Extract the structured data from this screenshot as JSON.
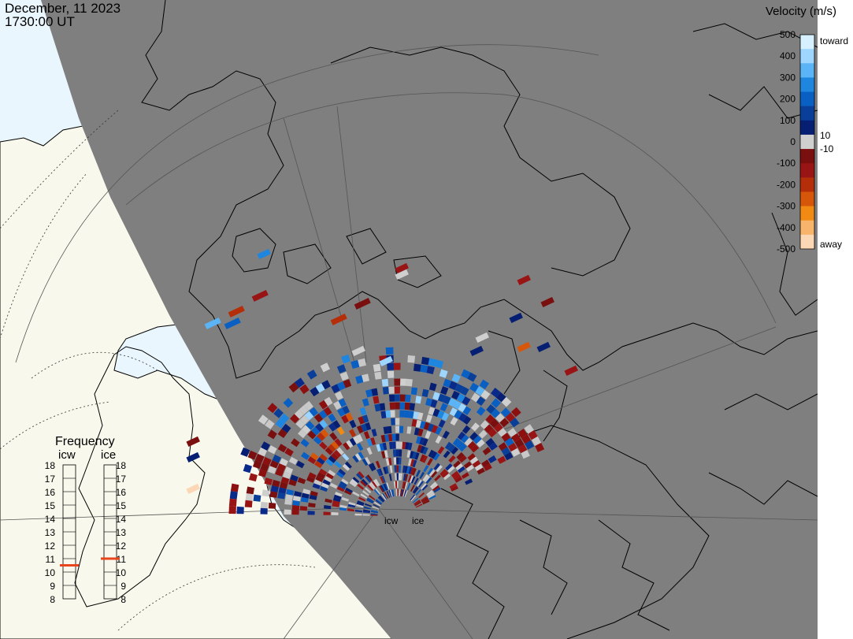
{
  "header": {
    "date": "December, 11 2023",
    "time": "1730:00 UT"
  },
  "colorbar": {
    "title": "Velocity (m/s)",
    "ticks": [
      "500",
      "400",
      "300",
      "200",
      "100",
      "0",
      "-100",
      "-200",
      "-300",
      "-400",
      "-500"
    ],
    "label_toward": "toward",
    "label_away": "away",
    "label_pos10": "10",
    "label_neg10": "-10",
    "colors": [
      "#d6f0ff",
      "#9fd6ff",
      "#5bb4f5",
      "#1f86e0",
      "#0a5fc2",
      "#093f99",
      "#071f73",
      "#cfcfcf",
      "#7a0f0f",
      "#991414",
      "#b52e0a",
      "#d6570a",
      "#f08a12",
      "#f7b46a",
      "#fcd7b5"
    ]
  },
  "frequency": {
    "title": "Frequency",
    "radars": [
      {
        "name": "icw",
        "current_mhz": 10.5
      },
      {
        "name": "ice",
        "current_mhz": 11.0
      }
    ],
    "scale": [
      "18",
      "17",
      "16",
      "15",
      "14",
      "13",
      "12",
      "11",
      "10",
      "9",
      "8"
    ],
    "marker_color": "#e8451c"
  },
  "radar_labels": [
    "icw",
    "ice"
  ],
  "map_colors": {
    "night": "#7f7f7f",
    "day_land": "#f8f8ec",
    "day_ocean": "#e9f6fd",
    "coast": "#000000",
    "grid": "#555555"
  }
}
